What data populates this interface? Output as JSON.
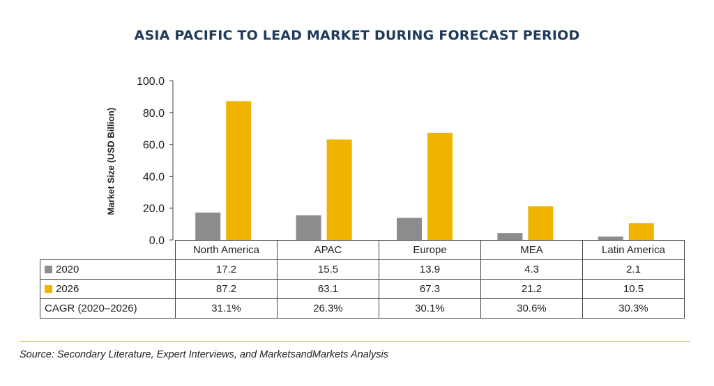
{
  "title": "ASIA PACIFIC TO LEAD MARKET DURING FORECAST PERIOD",
  "source": "Source: Secondary Literature, Expert Interviews, and MarketsandMarkets Analysis",
  "colors": {
    "s2020": "#8c8c8c",
    "s2026": "#f0b400",
    "title": "#1f3a5a",
    "rule": "#c9a227"
  },
  "chart_data": {
    "type": "bar",
    "title": "ASIA PACIFIC TO LEAD MARKET DURING FORECAST PERIOD",
    "xlabel": "",
    "ylabel": "Market Size (USD Billion)",
    "ylim": [
      0,
      100
    ],
    "yticks": [
      "100.0",
      "80.0",
      "60.0",
      "40.0",
      "20.0",
      "0.0"
    ],
    "grid": false,
    "categories": [
      "North America",
      "APAC",
      "Europe",
      "MEA",
      "Latin America"
    ],
    "series": [
      {
        "name": "2020",
        "values": [
          17.2,
          15.5,
          13.9,
          4.3,
          2.1
        ]
      },
      {
        "name": "2026",
        "values": [
          87.2,
          63.1,
          67.3,
          21.2,
          10.5
        ]
      }
    ]
  },
  "table": {
    "row_2020": {
      "label": "2020",
      "values": [
        "17.2",
        "15.5",
        "13.9",
        "4.3",
        "2.1"
      ]
    },
    "row_2026": {
      "label": "2026",
      "values": [
        "87.2",
        "63.1",
        "67.3",
        "21.2",
        "10.5"
      ]
    },
    "row_cagr": {
      "label": "CAGR (2020–2026)",
      "values": [
        "31.1%",
        "26.3%",
        "30.1%",
        "30.6%",
        "30.3%"
      ]
    }
  }
}
